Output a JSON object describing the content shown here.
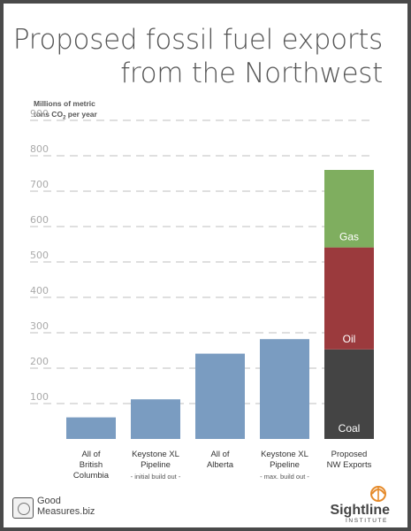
{
  "title_line1": "Proposed fossil fuel exports",
  "title_line2": "from the Northwest",
  "y_axis_label_line1": "Millions of metric",
  "y_axis_label_line2_pre": "tons CO",
  "y_axis_label_line2_sub": "2",
  "y_axis_label_line2_post": " per year",
  "colors": {
    "bar": "#7a9cc1",
    "gas": "#7fae5f",
    "oil": "#9b3a3d",
    "coal": "#444444",
    "gridline": "#cccccc"
  },
  "chart_data": {
    "type": "bar",
    "ylim": [
      0,
      900
    ],
    "yticks": [
      100,
      200,
      300,
      400,
      500,
      600,
      700,
      800,
      900
    ],
    "grid": true,
    "categories": [
      {
        "lines": [
          "All of",
          "British",
          "Columbia"
        ],
        "note": "",
        "value": 61
      },
      {
        "lines": [
          "Keystone XL",
          "Pipeline"
        ],
        "note": "- initial build out -",
        "value": 112
      },
      {
        "lines": [
          "All of",
          "Alberta"
        ],
        "note": "",
        "value": 241
      },
      {
        "lines": [
          "Keystone XL",
          "Pipeline"
        ],
        "note": "- max. build out -",
        "value": 282
      },
      {
        "lines": [
          "Proposed",
          "NW Exports"
        ],
        "note": "",
        "stacked": [
          {
            "name": "Coal",
            "value": 253
          },
          {
            "name": "Oil",
            "value": 288
          },
          {
            "name": "Gas",
            "value": 219
          }
        ]
      }
    ]
  },
  "logos": {
    "left_line1": "Good",
    "left_line2": "Measures.biz",
    "right_name": "Sightline",
    "right_sub": "INSTITUTE"
  }
}
